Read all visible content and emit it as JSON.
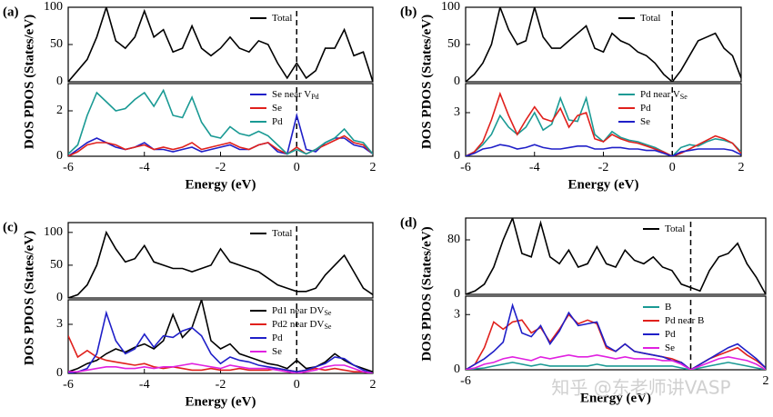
{
  "chart_data": [
    {
      "type": "line",
      "panel": "(a)",
      "ylabel": "DOS PDOS (States/eV)",
      "x": [
        -6,
        -5.75,
        -5.5,
        -5.25,
        -5,
        -4.75,
        -4.5,
        -4.25,
        -4,
        -3.75,
        -3.5,
        -3.25,
        -3,
        -2.75,
        -2.5,
        -2.25,
        -2,
        -1.75,
        -1.5,
        -1.25,
        -1,
        -0.75,
        -0.5,
        -0.25,
        0,
        0.25,
        0.5,
        0.75,
        1,
        1.25,
        1.5,
        1.75,
        2
      ],
      "xlim": [
        -6,
        2
      ],
      "ylim": [
        0,
        100
      ],
      "yticks": [
        0,
        50,
        100
      ],
      "vline": 0,
      "series": [
        {
          "name": "Total",
          "color": "#000000",
          "values": [
            0,
            15,
            30,
            60,
            100,
            55,
            45,
            60,
            95,
            60,
            70,
            40,
            45,
            75,
            45,
            35,
            45,
            60,
            45,
            40,
            55,
            50,
            25,
            5,
            25,
            5,
            15,
            45,
            45,
            70,
            35,
            40,
            0
          ]
        }
      ]
    },
    {
      "type": "line",
      "xlabel": "Energy (eV)",
      "x": [
        -6,
        -5.75,
        -5.5,
        -5.25,
        -5,
        -4.75,
        -4.5,
        -4.25,
        -4,
        -3.75,
        -3.5,
        -3.25,
        -3,
        -2.75,
        -2.5,
        -2.25,
        -2,
        -1.75,
        -1.5,
        -1.25,
        -1,
        -0.75,
        -0.5,
        -0.25,
        0,
        0.25,
        0.5,
        0.75,
        1,
        1.25,
        1.5,
        1.75,
        2
      ],
      "xlim": [
        -6,
        2
      ],
      "xticks": [
        -6,
        -4,
        -2,
        0,
        2
      ],
      "ylim": [
        0,
        3.2
      ],
      "yticks": [
        0,
        2
      ],
      "vline": 0,
      "series": [
        {
          "name": "Se near V",
          "subscript": "Pd",
          "color": "#1f1fc8",
          "values": [
            0,
            0.3,
            0.6,
            0.8,
            0.6,
            0.4,
            0.3,
            0.4,
            0.6,
            0.3,
            0.3,
            0.2,
            0.3,
            0.4,
            0.2,
            0.3,
            0.4,
            0.5,
            0.3,
            0.3,
            0.5,
            0.6,
            0.2,
            0.1,
            1.8,
            0.3,
            0.2,
            0.6,
            0.8,
            0.8,
            0.5,
            0.4,
            0.1
          ]
        },
        {
          "name": "Se",
          "color": "#e0201c",
          "values": [
            0,
            0.2,
            0.5,
            0.6,
            0.6,
            0.5,
            0.3,
            0.4,
            0.5,
            0.3,
            0.4,
            0.3,
            0.4,
            0.6,
            0.3,
            0.4,
            0.5,
            0.6,
            0.4,
            0.3,
            0.5,
            0.6,
            0.3,
            0.1,
            0.4,
            0.1,
            0.3,
            0.5,
            0.7,
            0.9,
            0.6,
            0.5,
            0.1
          ]
        },
        {
          "name": "Pd",
          "color": "#1a9a94",
          "values": [
            0.1,
            0.5,
            1.8,
            2.8,
            2.4,
            2.0,
            2.1,
            2.5,
            2.8,
            2.2,
            2.9,
            1.8,
            1.7,
            2.6,
            1.5,
            0.9,
            0.8,
            1.3,
            1.0,
            0.9,
            1.1,
            0.9,
            0.5,
            0.1,
            0.3,
            0.1,
            0.3,
            0.6,
            0.8,
            1.2,
            0.7,
            0.6,
            0.1
          ]
        }
      ]
    },
    {
      "type": "line",
      "panel": "(b)",
      "ylabel": "DOS PDOS (States/eV)",
      "x": [
        -6,
        -5.75,
        -5.5,
        -5.25,
        -5,
        -4.75,
        -4.5,
        -4.25,
        -4,
        -3.75,
        -3.5,
        -3.25,
        -3,
        -2.75,
        -2.5,
        -2.25,
        -2,
        -1.75,
        -1.5,
        -1.25,
        -1,
        -0.75,
        -0.5,
        -0.25,
        0,
        0.25,
        0.5,
        0.75,
        1,
        1.25,
        1.5,
        1.75,
        2
      ],
      "xlim": [
        -6,
        2
      ],
      "ylim": [
        0,
        100
      ],
      "yticks": [
        0,
        50,
        100
      ],
      "vline": 0,
      "series": [
        {
          "name": "Total",
          "color": "#000000",
          "values": [
            0,
            10,
            25,
            50,
            100,
            70,
            50,
            55,
            100,
            60,
            45,
            45,
            55,
            65,
            75,
            45,
            40,
            65,
            55,
            50,
            40,
            35,
            25,
            10,
            0,
            15,
            35,
            55,
            60,
            65,
            45,
            35,
            5
          ]
        }
      ]
    },
    {
      "type": "line",
      "xlabel": "Energy (eV)",
      "x": [
        -6,
        -5.75,
        -5.5,
        -5.25,
        -5,
        -4.75,
        -4.5,
        -4.25,
        -4,
        -3.75,
        -3.5,
        -3.25,
        -3,
        -2.75,
        -2.5,
        -2.25,
        -2,
        -1.75,
        -1.5,
        -1.25,
        -1,
        -0.75,
        -0.5,
        -0.25,
        0,
        0.25,
        0.5,
        0.75,
        1,
        1.25,
        1.5,
        1.75,
        2
      ],
      "xlim": [
        -6,
        2
      ],
      "xticks": [
        -6,
        -4,
        -2,
        0,
        2
      ],
      "ylim": [
        0,
        5
      ],
      "yticks": [
        0,
        3
      ],
      "vline": 0,
      "series": [
        {
          "name": "Pd near V",
          "subscript": "Se",
          "color": "#1a9a94",
          "values": [
            0,
            0.3,
            0.8,
            1.5,
            2.8,
            2,
            1.5,
            2,
            3,
            1.8,
            2.2,
            4,
            2.5,
            2.4,
            4,
            1.5,
            1,
            1.7,
            1.3,
            1.1,
            1,
            0.8,
            0.6,
            0.3,
            0,
            0.6,
            0.8,
            0.7,
            1,
            1.2,
            1.1,
            0.9,
            0.3
          ]
        },
        {
          "name": "Pd",
          "color": "#e0201c",
          "values": [
            0,
            0.3,
            1,
            2.5,
            4.3,
            2.8,
            1.5,
            2.5,
            3.4,
            2.6,
            2.4,
            3.3,
            2,
            2.8,
            3,
            1.2,
            1,
            1.5,
            1.2,
            1,
            0.9,
            0.7,
            0.5,
            0.3,
            0,
            0.2,
            0.5,
            0.8,
            1.1,
            1.4,
            1.2,
            0.9,
            0.2
          ]
        },
        {
          "name": "Se",
          "color": "#1f1fc8",
          "values": [
            0,
            0.2,
            0.5,
            0.6,
            0.8,
            0.7,
            0.5,
            0.6,
            0.8,
            0.6,
            0.5,
            0.5,
            0.6,
            0.7,
            0.7,
            0.5,
            0.5,
            0.6,
            0.6,
            0.5,
            0.5,
            0.4,
            0.4,
            0.2,
            0,
            0.3,
            0.4,
            0.5,
            0.5,
            0.5,
            0.5,
            0.4,
            0.1
          ]
        }
      ]
    },
    {
      "type": "line",
      "panel": "(c)",
      "ylabel": "DOS PDOS (States/eV)",
      "x": [
        -6,
        -5.75,
        -5.5,
        -5.25,
        -5,
        -4.75,
        -4.5,
        -4.25,
        -4,
        -3.75,
        -3.5,
        -3.25,
        -3,
        -2.75,
        -2.5,
        -2.25,
        -2,
        -1.75,
        -1.5,
        -1.25,
        -1,
        -0.75,
        -0.5,
        -0.25,
        0,
        0.25,
        0.5,
        0.75,
        1,
        1.25,
        1.5,
        1.75,
        2
      ],
      "xlim": [
        -6,
        2
      ],
      "ylim": [
        0,
        115
      ],
      "yticks": [
        0,
        50,
        100
      ],
      "vline": 0,
      "series": [
        {
          "name": "Total",
          "color": "#000000",
          "values": [
            0,
            5,
            20,
            50,
            100,
            75,
            55,
            60,
            80,
            55,
            50,
            45,
            45,
            40,
            45,
            50,
            75,
            55,
            50,
            45,
            40,
            30,
            20,
            15,
            10,
            10,
            15,
            35,
            50,
            65,
            40,
            15,
            5
          ]
        }
      ]
    },
    {
      "type": "line",
      "xlabel": "Energy (eV)",
      "x": [
        -6,
        -5.75,
        -5.5,
        -5.25,
        -5,
        -4.75,
        -4.5,
        -4.25,
        -4,
        -3.75,
        -3.5,
        -3.25,
        -3,
        -2.75,
        -2.5,
        -2.25,
        -2,
        -1.75,
        -1.5,
        -1.25,
        -1,
        -0.75,
        -0.5,
        -0.25,
        0,
        0.25,
        0.5,
        0.75,
        1,
        1.25,
        1.5,
        1.75,
        2
      ],
      "xlim": [
        -6,
        2
      ],
      "xticks": [
        -6,
        -4,
        -2,
        0,
        2
      ],
      "ylim": [
        0,
        4.5
      ],
      "yticks": [
        0,
        3
      ],
      "vline": 0,
      "series": [
        {
          "name": "Pd1 near DV",
          "subscript": "Se",
          "color": "#000000",
          "values": [
            0.1,
            0.3,
            0.6,
            0.8,
            1.2,
            1.5,
            1.3,
            1.6,
            1.8,
            1.5,
            2,
            3.6,
            2.2,
            2.8,
            4.5,
            2,
            1.5,
            1.8,
            1.2,
            1,
            0.8,
            0.6,
            0.5,
            0.3,
            0.8,
            0.3,
            0.4,
            0.7,
            1.2,
            0.8,
            0.5,
            0.3,
            0.1
          ]
        },
        {
          "name": "Pd2 near DV",
          "subscript": "Se",
          "color": "#e0201c",
          "values": [
            2.3,
            1,
            1.4,
            1,
            0.8,
            0.7,
            0.6,
            0.5,
            0.6,
            0.4,
            0.3,
            0.4,
            0.3,
            0.2,
            0.2,
            0.3,
            0.2,
            0.2,
            0.3,
            0.2,
            0.2,
            0.2,
            0.3,
            0.2,
            0.1,
            0.2,
            0.3,
            0.2,
            0.3,
            0.2,
            0.1,
            0.1,
            0
          ]
        },
        {
          "name": "Pd",
          "color": "#1f1fc8",
          "values": [
            0,
            0.1,
            0.3,
            1.2,
            3.7,
            2,
            1.2,
            1.5,
            2.4,
            1.6,
            2.3,
            2.2,
            2.6,
            2.8,
            2.3,
            1.2,
            0.6,
            1,
            0.8,
            0.7,
            0.5,
            0.4,
            0.3,
            0.2,
            0.1,
            0.2,
            0.4,
            0.6,
            1,
            0.9,
            0.5,
            0.2,
            0
          ]
        },
        {
          "name": "Se",
          "color": "#e020e0",
          "values": [
            0.1,
            0.1,
            0.2,
            0.3,
            0.4,
            0.4,
            0.3,
            0.3,
            0.4,
            0.3,
            0.4,
            0.4,
            0.5,
            0.6,
            0.5,
            0.4,
            0.3,
            0.5,
            0.4,
            0.3,
            0.3,
            0.3,
            0.2,
            0.1,
            0,
            0.1,
            0.2,
            0.4,
            0.5,
            0.5,
            0.3,
            0.1,
            0
          ]
        }
      ]
    },
    {
      "type": "line",
      "panel": "(d)",
      "ylabel": "DOS PDOS (States/eV)",
      "x": [
        -6,
        -5.75,
        -5.5,
        -5.25,
        -5,
        -4.75,
        -4.5,
        -4.25,
        -4,
        -3.75,
        -3.5,
        -3.25,
        -3,
        -2.75,
        -2.5,
        -2.25,
        -2,
        -1.75,
        -1.5,
        -1.25,
        -1,
        -0.75,
        -0.5,
        -0.25,
        0,
        0.25,
        0.5,
        0.75,
        1,
        1.25,
        1.5,
        1.75,
        2
      ],
      "xlim": [
        -6,
        2
      ],
      "ylim": [
        0,
        112
      ],
      "yticks": [
        0,
        80
      ],
      "vline": 0,
      "series": [
        {
          "name": "Total",
          "color": "#000000",
          "values": [
            0,
            5,
            15,
            40,
            80,
            112,
            60,
            55,
            105,
            55,
            45,
            65,
            40,
            45,
            70,
            45,
            40,
            65,
            50,
            45,
            55,
            40,
            35,
            15,
            10,
            5,
            35,
            55,
            60,
            75,
            45,
            25,
            0
          ]
        }
      ]
    },
    {
      "type": "line",
      "xlabel": "Energy (eV)",
      "x": [
        -6,
        -5.75,
        -5.5,
        -5.25,
        -5,
        -4.75,
        -4.5,
        -4.25,
        -4,
        -3.75,
        -3.5,
        -3.25,
        -3,
        -2.75,
        -2.5,
        -2.25,
        -2,
        -1.75,
        -1.5,
        -1.25,
        -1,
        -0.75,
        -0.5,
        -0.25,
        0,
        0.25,
        0.5,
        0.75,
        1,
        1.25,
        1.5,
        1.75,
        2
      ],
      "xlim": [
        -6,
        2
      ],
      "xticks": [
        -6,
        2
      ],
      "ylim": [
        0,
        4
      ],
      "yticks": [
        0,
        3
      ],
      "vline": 0,
      "series": [
        {
          "name": "B",
          "color": "#1a9a94",
          "values": [
            0,
            0.05,
            0.1,
            0.2,
            0.3,
            0.4,
            0.3,
            0.2,
            0.3,
            0.2,
            0.2,
            0.2,
            0.2,
            0.2,
            0.3,
            0.2,
            0.2,
            0.2,
            0.2,
            0.2,
            0.2,
            0.2,
            0.2,
            0.1,
            0,
            0.1,
            0.2,
            0.3,
            0.4,
            0.3,
            0.2,
            0.1,
            0
          ]
        },
        {
          "name": "Pd near B",
          "color": "#e0201c",
          "values": [
            0,
            0.3,
            1.2,
            2.6,
            2.2,
            2.6,
            2.7,
            2,
            2.3,
            1.5,
            2.2,
            3,
            2.5,
            2.7,
            2.5,
            1.2,
            1,
            1.4,
            1,
            0.9,
            0.8,
            0.7,
            0.6,
            0.4,
            0,
            0.3,
            0.6,
            0.8,
            1,
            1.2,
            0.8,
            0.5,
            0.1
          ]
        },
        {
          "name": "Pd",
          "color": "#1f1fc8",
          "values": [
            0,
            0.3,
            0.6,
            1,
            1.5,
            3.5,
            2,
            1.8,
            2.4,
            1.4,
            2.1,
            3.1,
            2.4,
            2.5,
            2.6,
            1.3,
            1,
            1.4,
            1,
            0.9,
            0.8,
            0.7,
            0.5,
            0.4,
            0,
            0.3,
            0.6,
            0.9,
            1.2,
            1.4,
            1,
            0.6,
            0.1
          ]
        },
        {
          "name": "Se",
          "color": "#e020e0",
          "values": [
            0,
            0.1,
            0.3,
            0.4,
            0.6,
            0.7,
            0.6,
            0.5,
            0.7,
            0.6,
            0.7,
            0.8,
            0.7,
            0.7,
            0.8,
            0.7,
            0.6,
            0.7,
            0.6,
            0.6,
            0.6,
            0.5,
            0.5,
            0.3,
            0,
            0.2,
            0.4,
            0.6,
            0.7,
            0.6,
            0.5,
            0.3,
            0
          ]
        }
      ]
    }
  ],
  "watermark": "知乎 @东老师讲VASP"
}
